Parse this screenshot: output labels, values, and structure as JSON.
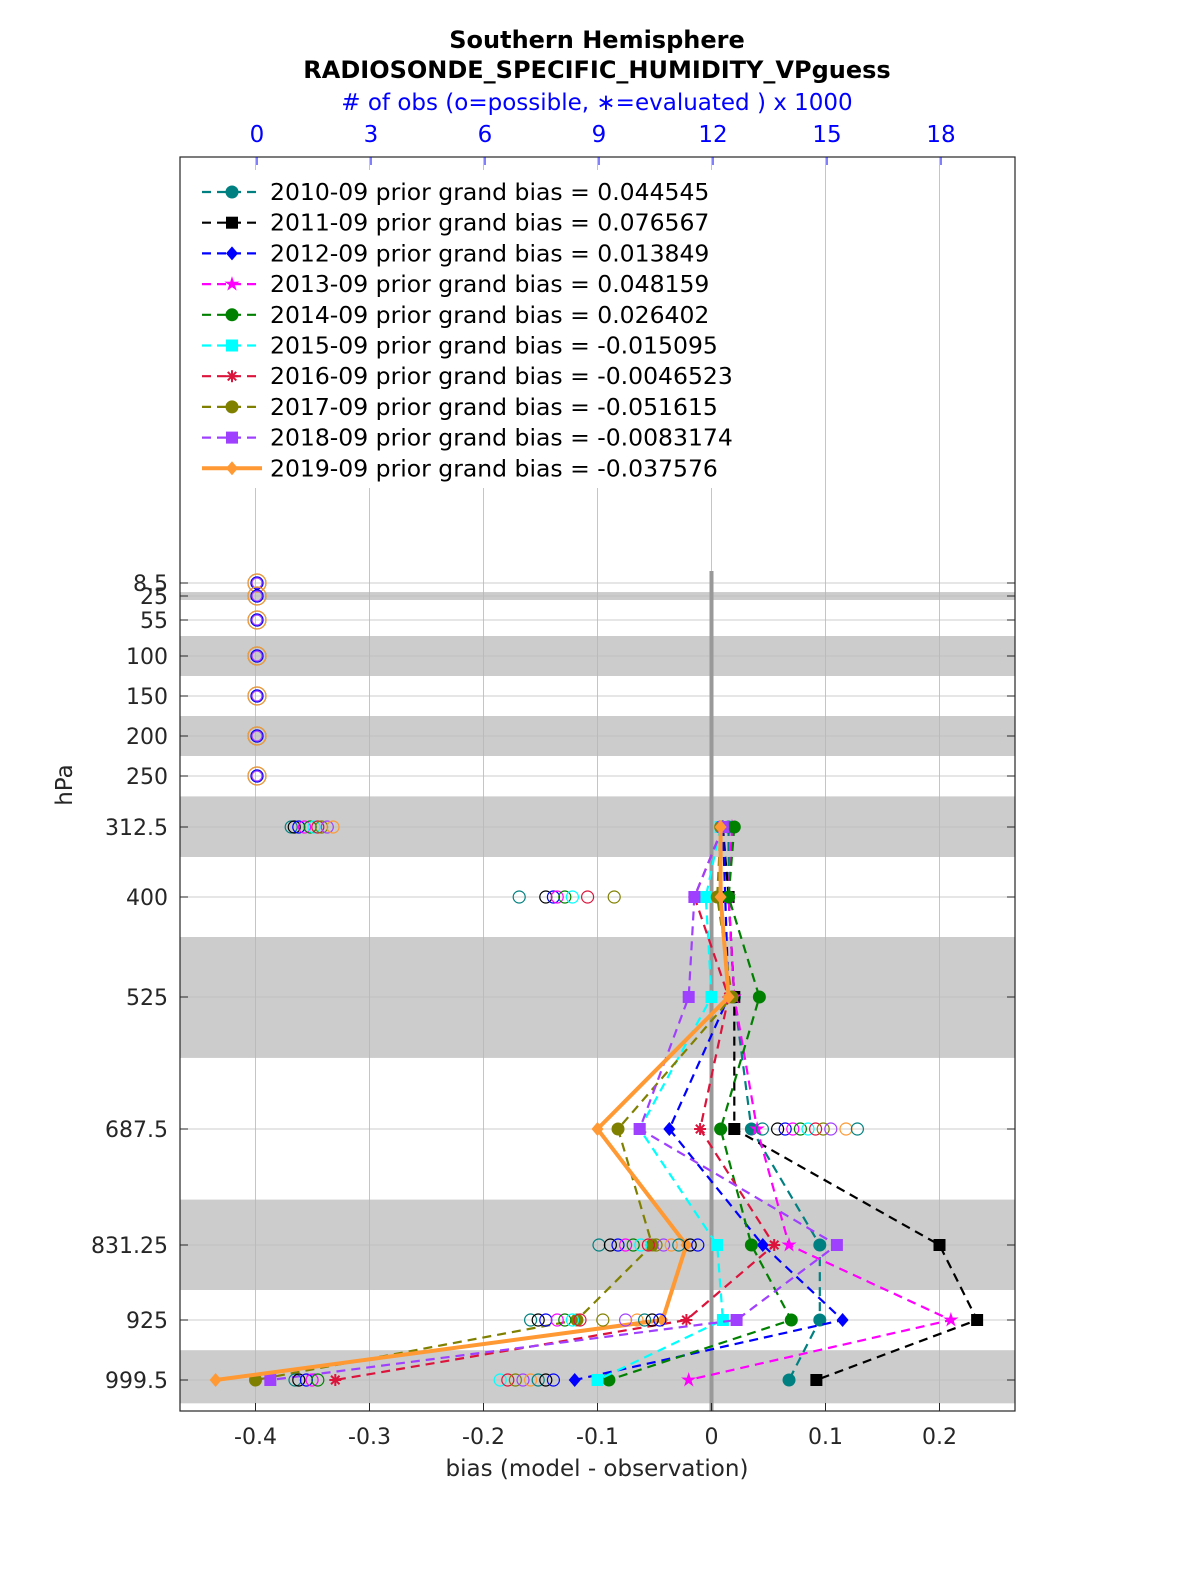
{
  "chart_data": {
    "type": "line",
    "title": "Southern Hemisphere",
    "subtitle": "RADIOSONDE_SPECIFIC_HUMIDITY_VPguess",
    "top_axis_label": "# of obs (o=possible, ∗=evaluated ) x 1000",
    "top_ticks": [
      "0",
      "3",
      "6",
      "9",
      "12",
      "15",
      "18"
    ],
    "top_tick_values": [
      0,
      3,
      6,
      9,
      12,
      15,
      18
    ],
    "top_axis_color": "#0000ff",
    "xlabel": "bias (model - observation)",
    "ylabel": "hPa",
    "x_ticks": [
      "-0.4",
      "-0.3",
      "-0.2",
      "-0.1",
      "0",
      "0.1",
      "0.2"
    ],
    "x_tick_values": [
      -0.4,
      -0.3,
      -0.2,
      -0.1,
      0,
      0.1,
      0.2
    ],
    "xlim": [
      -0.47,
      0.265
    ],
    "y_ticks": [
      "8.5",
      "25",
      "55",
      "100",
      "150",
      "200",
      "250",
      "312.5",
      "400",
      "525",
      "687.5",
      "831.25",
      "925",
      "999.5"
    ],
    "levels": [
      8.5,
      25,
      55,
      100,
      150,
      200,
      250,
      312.5,
      400,
      525,
      687.5,
      831.25,
      925,
      999.5
    ],
    "shaded_bands_hPa": [
      [
        20,
        30
      ],
      [
        75,
        125
      ],
      [
        175,
        225
      ],
      [
        275,
        350
      ],
      [
        450,
        600
      ],
      [
        775,
        887.5
      ],
      [
        962.5,
        1037.5
      ]
    ],
    "grid": true,
    "legend_placement": "top-left",
    "series": [
      {
        "name": "2010-09 prior grand bias = 0.044545",
        "color": "#008080",
        "marker": "circle",
        "style": "dashed",
        "points": [
          [
            0.015,
            312.5
          ],
          [
            0.015,
            400
          ],
          [
            0.02,
            525
          ],
          [
            0.035,
            687.5
          ],
          [
            0.095,
            831.25
          ],
          [
            0.095,
            925
          ],
          [
            0.068,
            999.5
          ]
        ]
      },
      {
        "name": "2011-09 prior grand bias = 0.076567",
        "color": "#000000",
        "marker": "square",
        "style": "dashed",
        "points": [
          [
            0.01,
            312.5
          ],
          [
            0.015,
            400
          ],
          [
            0.02,
            525
          ],
          [
            0.02,
            687.5
          ],
          [
            0.2,
            831.25
          ],
          [
            0.233,
            925
          ],
          [
            0.092,
            999.5
          ]
        ]
      },
      {
        "name": "2012-09 prior grand bias = 0.013849",
        "color": "#0000ff",
        "marker": "diamond",
        "style": "dashed",
        "points": [
          [
            0.01,
            312.5
          ],
          [
            0.012,
            400
          ],
          [
            0.015,
            525
          ],
          [
            -0.037,
            687.5
          ],
          [
            0.045,
            831.25
          ],
          [
            0.115,
            925
          ],
          [
            -0.12,
            999.5
          ]
        ]
      },
      {
        "name": "2013-09 prior grand bias = 0.048159",
        "color": "#ff00ff",
        "marker": "star",
        "style": "dashed",
        "points": [
          [
            0.018,
            312.5
          ],
          [
            0.015,
            400
          ],
          [
            0.02,
            525
          ],
          [
            0.04,
            687.5
          ],
          [
            0.068,
            831.25
          ],
          [
            0.21,
            925
          ],
          [
            -0.02,
            999.5
          ]
        ]
      },
      {
        "name": "2014-09 prior grand bias = 0.026402",
        "color": "#008000",
        "marker": "star-filled",
        "style": "dashed",
        "points": [
          [
            0.02,
            312.5
          ],
          [
            0.015,
            400
          ],
          [
            0.042,
            525
          ],
          [
            0.008,
            687.5
          ],
          [
            0.035,
            831.25
          ],
          [
            0.07,
            925
          ],
          [
            -0.09,
            999.5
          ]
        ]
      },
      {
        "name": "2015-09 prior grand bias = -0.015095",
        "color": "#00ffff",
        "marker": "square",
        "style": "dashed",
        "points": [
          [
            0.008,
            312.5
          ],
          [
            -0.005,
            400
          ],
          [
            0.0,
            525
          ],
          [
            -0.063,
            687.5
          ],
          [
            0.005,
            831.25
          ],
          [
            0.01,
            925
          ],
          [
            -0.1,
            999.5
          ]
        ]
      },
      {
        "name": "2016-09 prior grand bias = -0.0046523",
        "color": "#dc143c",
        "marker": "asterisk",
        "style": "dashed",
        "points": [
          [
            0.01,
            312.5
          ],
          [
            -0.015,
            400
          ],
          [
            0.015,
            525
          ],
          [
            -0.01,
            687.5
          ],
          [
            0.055,
            831.25
          ],
          [
            -0.022,
            925
          ],
          [
            -0.33,
            999.5
          ]
        ]
      },
      {
        "name": "2017-09 prior grand bias = -0.051615",
        "color": "#808000",
        "marker": "circle",
        "style": "dashed",
        "points": [
          [
            0.008,
            312.5
          ],
          [
            0.005,
            400
          ],
          [
            0.018,
            525
          ],
          [
            -0.082,
            687.5
          ],
          [
            -0.052,
            831.25
          ],
          [
            -0.118,
            925
          ],
          [
            -0.4,
            999.5
          ]
        ]
      },
      {
        "name": "2018-09 prior grand bias = -0.0083174",
        "color": "#a040ff",
        "marker": "square",
        "style": "dashed",
        "points": [
          [
            0.01,
            312.5
          ],
          [
            -0.015,
            400
          ],
          [
            -0.02,
            525
          ],
          [
            -0.063,
            687.5
          ],
          [
            0.11,
            831.25
          ],
          [
            0.022,
            925
          ],
          [
            -0.387,
            999.5
          ]
        ]
      },
      {
        "name": "2019-09 prior grand bias = -0.037576",
        "color": "#ff9933",
        "marker": "diamond",
        "style": "solid",
        "points": [
          [
            0.008,
            312.5
          ],
          [
            0.008,
            400
          ],
          [
            0.015,
            525
          ],
          [
            -0.1,
            687.5
          ],
          [
            -0.022,
            831.25
          ],
          [
            -0.043,
            925
          ],
          [
            -0.435,
            999.5
          ]
        ]
      }
    ],
    "obs_count_markers": [
      {
        "level": 8.5,
        "x": [
          0,
          0,
          0
        ]
      },
      {
        "level": 25,
        "x": [
          0,
          0,
          0
        ]
      },
      {
        "level": 55,
        "x": [
          0,
          0,
          0
        ]
      },
      {
        "level": 100,
        "x": [
          0,
          0,
          0
        ]
      },
      {
        "level": 150,
        "x": [
          0,
          0,
          0
        ]
      },
      {
        "level": 200,
        "x": [
          0,
          0,
          0
        ]
      },
      {
        "level": 250,
        "x": [
          0,
          0,
          0
        ]
      },
      {
        "level": 312.5,
        "x": [
          0.9,
          0.98,
          1.1,
          1.25,
          1.4,
          1.5,
          1.6,
          1.7,
          1.85,
          2.0
        ]
      },
      {
        "level": 400,
        "x": [
          6.9,
          7.6,
          7.8,
          7.9,
          8.1,
          8.3,
          8.7,
          9.4
        ]
      },
      {
        "level": 687.5,
        "x": [
          13.3,
          13.7,
          13.9,
          14.1,
          14.3,
          14.5,
          14.7,
          14.9,
          15.1,
          15.5,
          15.8
        ]
      },
      {
        "level": 831.25,
        "x": [
          9.0,
          9.3,
          9.5,
          9.7,
          9.9,
          10.1,
          10.3,
          10.5,
          10.7,
          10.9,
          11.1,
          11.4,
          11.6
        ]
      },
      {
        "level": 925,
        "x": [
          7.2,
          7.4,
          7.6,
          7.9,
          8.1,
          8.3,
          8.5,
          9.1,
          9.7,
          10.0,
          10.2,
          10.4,
          10.6
        ]
      },
      {
        "level": 999.5,
        "x": [
          1.0,
          1.1,
          1.3,
          1.45,
          1.6,
          6.4,
          6.6,
          6.8,
          7.0,
          7.2,
          7.4,
          7.6,
          7.8
        ]
      }
    ]
  },
  "colors": {
    "top_axis": "#0000ff",
    "band": "#cccccc",
    "zero_line": "#999999"
  }
}
